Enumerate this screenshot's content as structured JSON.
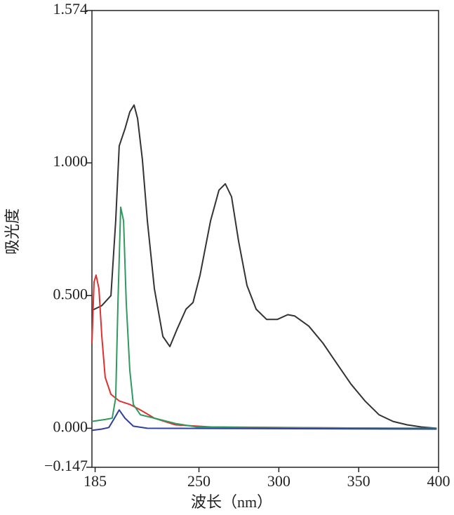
{
  "chart_data": {
    "type": "line",
    "xlabel": "波长（nm）",
    "ylabel": "吸光度",
    "xlim": [
      183,
      400
    ],
    "xticks": [
      185,
      250,
      300,
      350,
      400
    ],
    "ylim": [
      -0.147,
      1.574
    ],
    "yticks": [
      {
        "value": -0.147,
        "label": "−0.147"
      },
      {
        "value": 0,
        "label": "0.000"
      },
      {
        "value": 0.5,
        "label": "0.500"
      },
      {
        "value": 1,
        "label": "1.000"
      },
      1.574
    ],
    "series": [
      {
        "color": "#333333",
        "x": [
          183.0,
          189.2,
          194.9,
          197.9,
          200.1,
          203.7,
          206.7,
          209.4,
          211.6,
          214.6,
          217.7,
          222.1,
          227.4,
          231.8,
          236.2,
          241.9,
          246.3,
          250.7,
          257.3,
          262.5,
          266.5,
          270.4,
          274.8,
          280.1,
          285.8,
          292.4,
          299.0,
          305.6,
          310.0,
          318.8,
          327.6,
          336.3,
          345.1,
          353.9,
          362.7,
          371.5,
          380.3,
          389.1,
          398.8
        ],
        "values": [
          0.444,
          0.462,
          0.5,
          0.782,
          1.064,
          1.128,
          1.192,
          1.218,
          1.167,
          1.013,
          0.782,
          0.526,
          0.346,
          0.308,
          0.372,
          0.449,
          0.474,
          0.577,
          0.782,
          0.897,
          0.921,
          0.872,
          0.705,
          0.538,
          0.449,
          0.41,
          0.41,
          0.428,
          0.423,
          0.385,
          0.321,
          0.244,
          0.167,
          0.103,
          0.051,
          0.026,
          0.013,
          0.005,
          0.0
        ]
      },
      {
        "color": "#e03030",
        "x": [
          183.0,
          184.3,
          185.6,
          187.4,
          189.2,
          191.3,
          194.9,
          200.1,
          206.7,
          213.3,
          222.1,
          235.3,
          257.3,
          301.2,
          362.7
        ],
        "values": [
          0.321,
          0.551,
          0.577,
          0.526,
          0.346,
          0.192,
          0.128,
          0.103,
          0.09,
          0.069,
          0.038,
          0.013,
          0.005,
          0.003,
          0.0
        ]
      },
      {
        "color": "#2e9a5e",
        "x": [
          183.0,
          191.3,
          195.7,
          197.9,
          199.3,
          201.0,
          202.8,
          204.5,
          206.7,
          208.9,
          213.3,
          222.1,
          235.3,
          248.5,
          279.2,
          398.8
        ],
        "values": [
          0.026,
          0.033,
          0.038,
          0.115,
          0.474,
          0.833,
          0.782,
          0.474,
          0.218,
          0.09,
          0.051,
          0.038,
          0.018,
          0.005,
          0.003,
          0.0
        ]
      },
      {
        "color": "#3040a0",
        "x": [
          183.0,
          189.2,
          193.6,
          197.1,
          200.1,
          203.7,
          208.9,
          217.7,
          398.8
        ],
        "values": [
          -0.008,
          -0.003,
          0.003,
          0.038,
          0.069,
          0.038,
          0.008,
          0.0,
          -0.003
        ]
      }
    ]
  }
}
